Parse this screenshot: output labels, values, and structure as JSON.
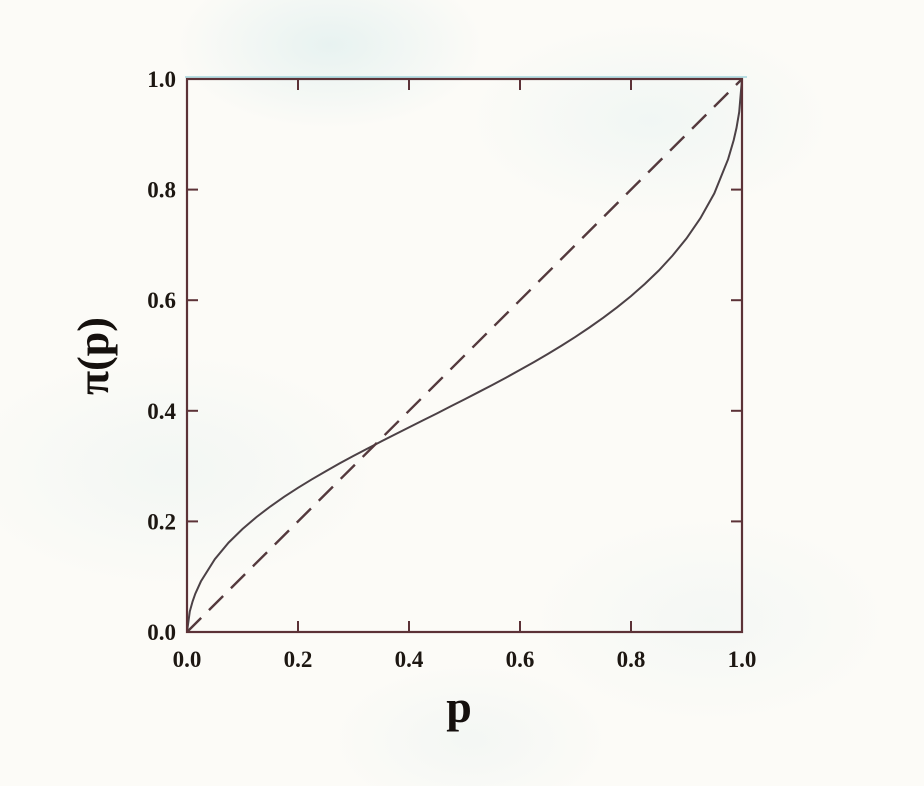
{
  "figure": {
    "background_color": "#fcfbf7",
    "ink_color": "#1d1712",
    "frame_color": "#5c3237",
    "curve_color": "#4c4146",
    "diagonal_color": "#54393d",
    "scan_fringe_color": "rgba(130,200,212,0.55)"
  },
  "chart_data": {
    "type": "line",
    "title": "",
    "xlabel": "p",
    "ylabel": "π(p)",
    "xlim": [
      0,
      1
    ],
    "ylim": [
      0,
      1
    ],
    "grid": false,
    "legend": "none",
    "x_ticks": {
      "values": [
        0,
        0.2,
        0.4,
        0.6,
        0.8,
        1
      ],
      "labels": [
        "0.0",
        "0.2",
        "0.4",
        "0.6",
        "0.8",
        "1.0"
      ]
    },
    "y_ticks": {
      "values": [
        0,
        0.2,
        0.4,
        0.6,
        0.8,
        1
      ],
      "labels": [
        "0.0",
        "0.2",
        "0.4",
        "0.6",
        "0.8",
        "1.0"
      ]
    },
    "series": [
      {
        "name": "probability-weighting-function-solid-curve",
        "line_style": "solid",
        "x": [
          0,
          0.005,
          0.01,
          0.015,
          0.025,
          0.05,
          0.075,
          0.1,
          0.125,
          0.15,
          0.175,
          0.2,
          0.225,
          0.25,
          0.275,
          0.3,
          0.325,
          0.35,
          0.375,
          0.4,
          0.425,
          0.45,
          0.475,
          0.5,
          0.525,
          0.55,
          0.575,
          0.6,
          0.625,
          0.65,
          0.675,
          0.7,
          0.725,
          0.75,
          0.775,
          0.8,
          0.825,
          0.85,
          0.875,
          0.9,
          0.925,
          0.95,
          0.975,
          0.985,
          0.99,
          0.995,
          1
        ],
        "y": [
          0,
          0.0372,
          0.0553,
          0.0692,
          0.0915,
          0.1316,
          0.1616,
          0.1863,
          0.2077,
          0.2269,
          0.2445,
          0.2608,
          0.2761,
          0.2907,
          0.3048,
          0.3184,
          0.3316,
          0.3446,
          0.3574,
          0.37,
          0.3826,
          0.3952,
          0.4079,
          0.4207,
          0.4336,
          0.4467,
          0.4601,
          0.4739,
          0.488,
          0.5027,
          0.5179,
          0.5338,
          0.5506,
          0.5683,
          0.5872,
          0.6075,
          0.6295,
          0.6537,
          0.6808,
          0.7117,
          0.7482,
          0.7932,
          0.8549,
          0.8896,
          0.9116,
          0.9402,
          1
        ]
      },
      {
        "name": "identity-reference-line-dashed",
        "line_style": "dashed",
        "x": [
          0,
          1
        ],
        "y": [
          0,
          1
        ]
      }
    ]
  }
}
